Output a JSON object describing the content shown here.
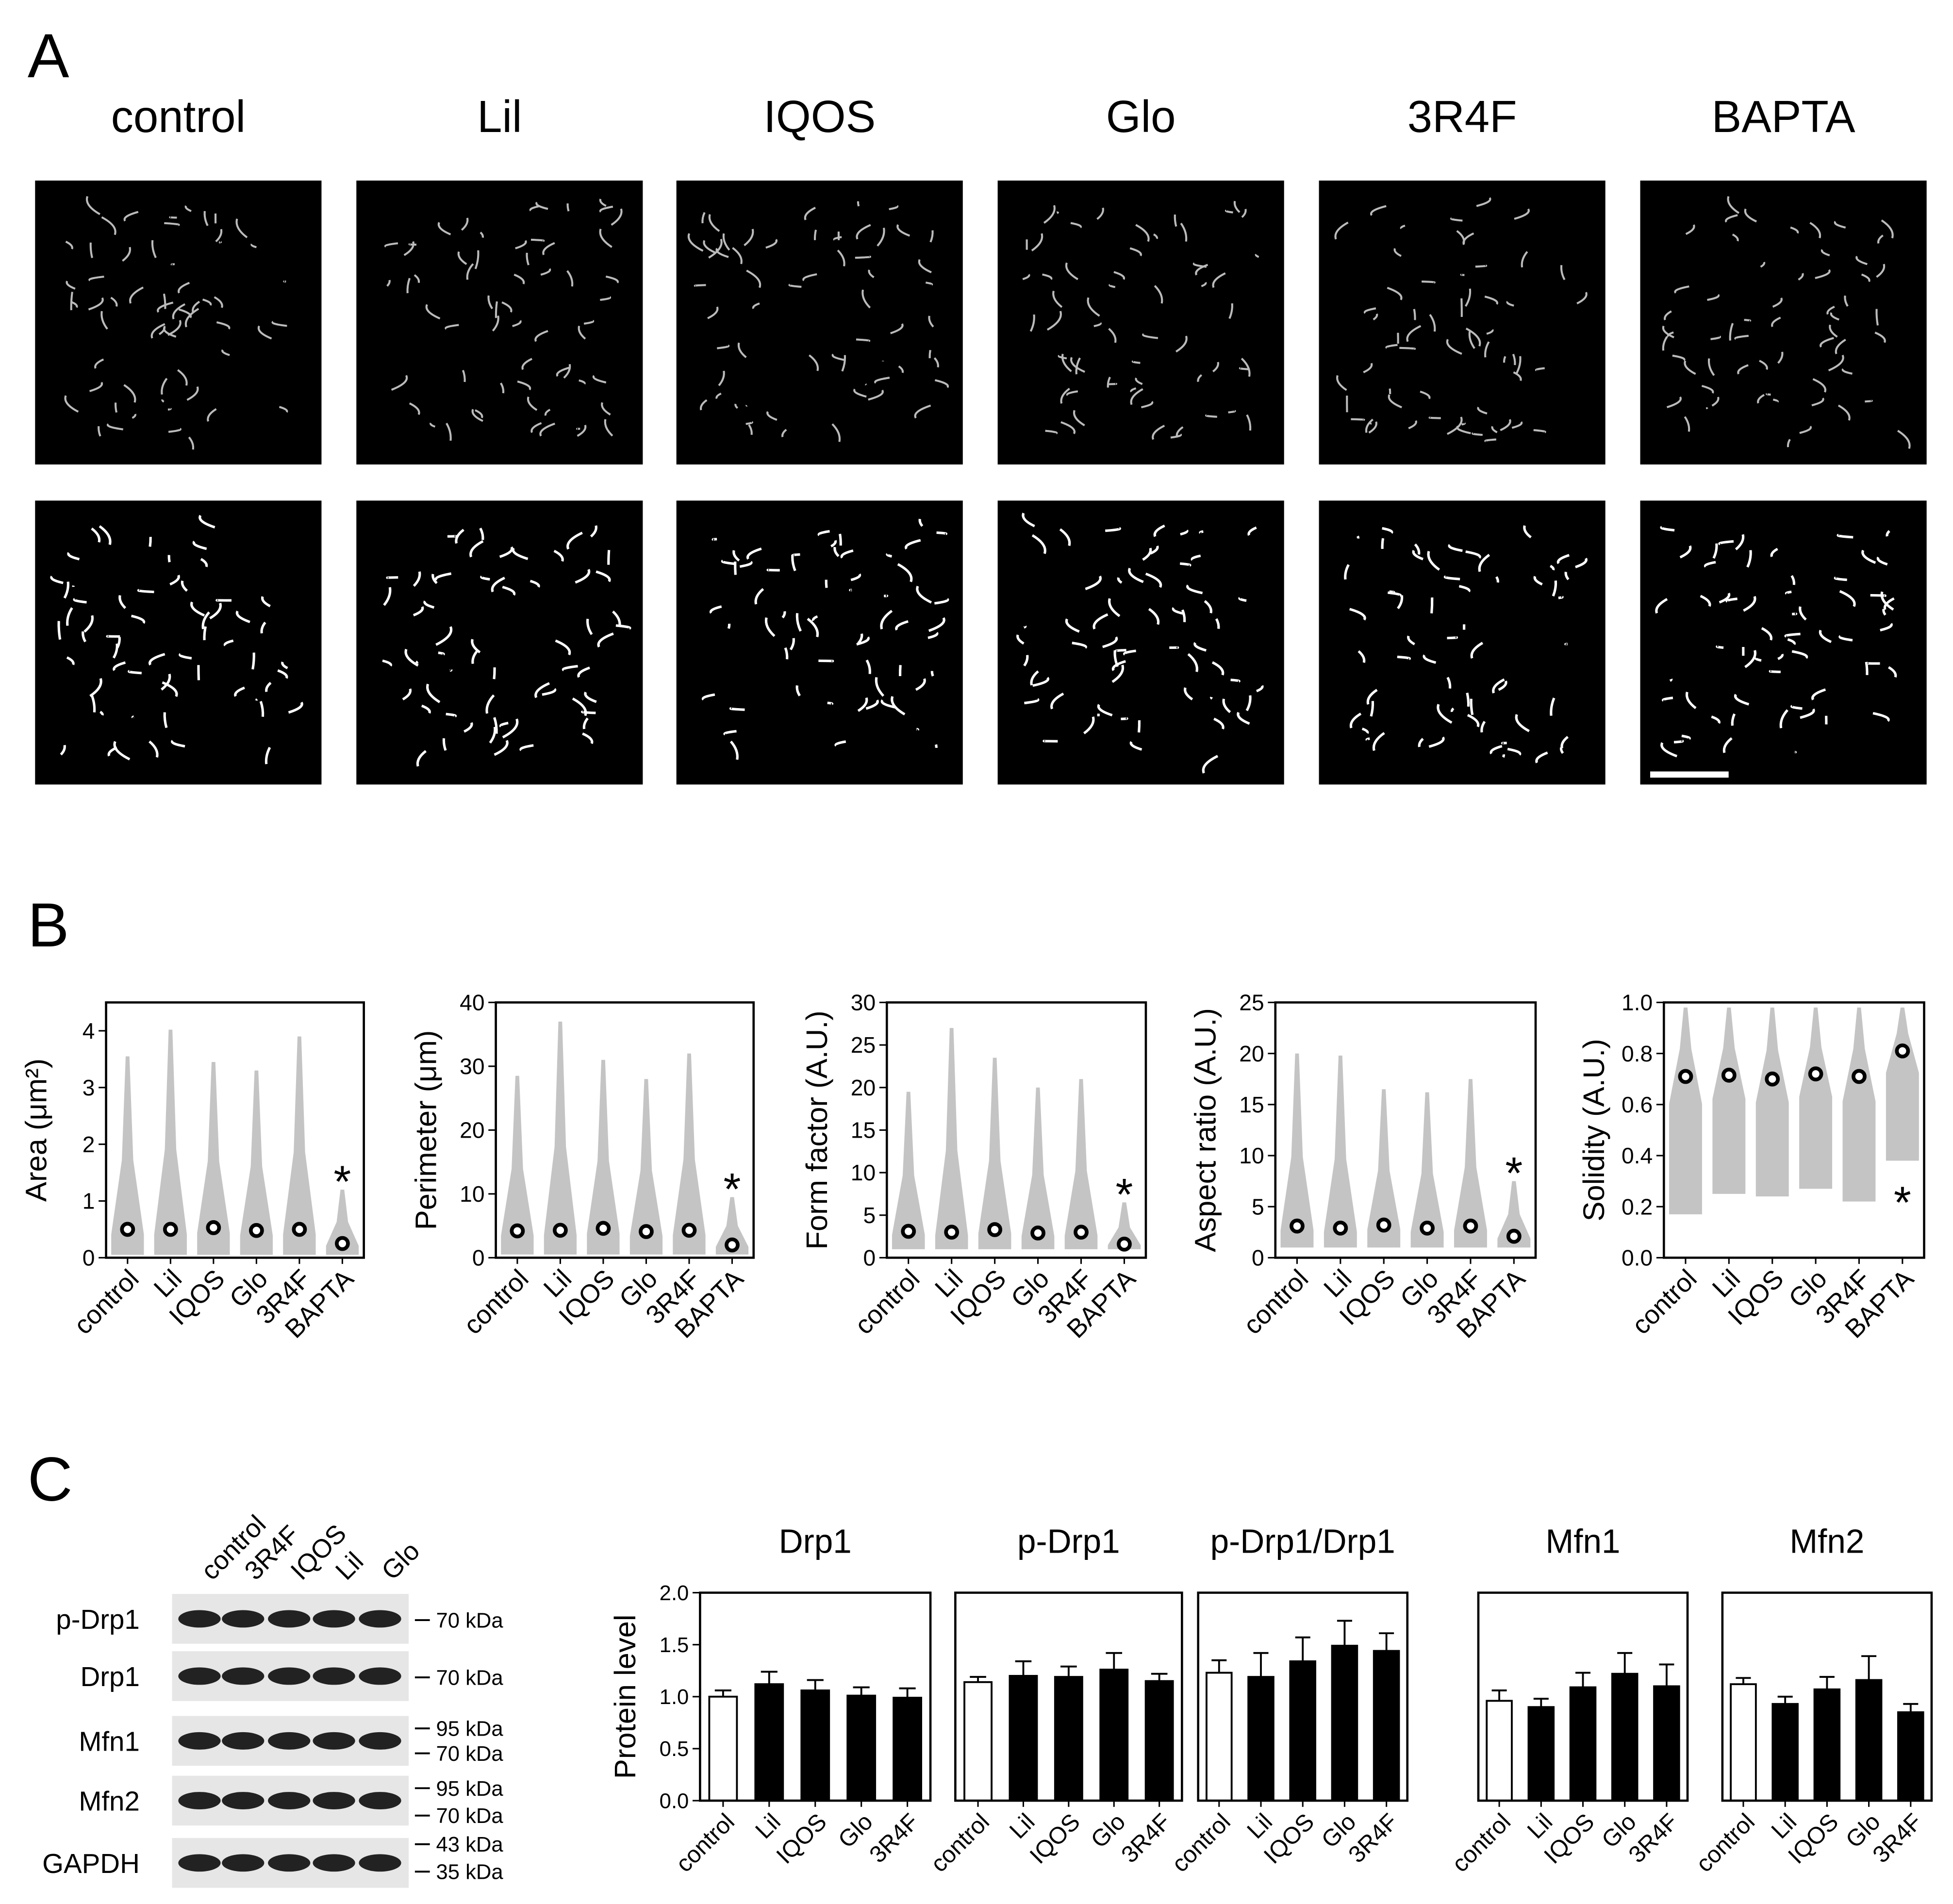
{
  "panel_labels": [
    "A",
    "B",
    "C"
  ],
  "micrograph_columns": [
    "control",
    "Lil",
    "IQOS",
    "Glo",
    "3R4F",
    "BAPTA"
  ],
  "western_blot": {
    "lanes": [
      "control",
      "3R4F",
      "IQOS",
      "Lil",
      "Glo"
    ],
    "rows": [
      {
        "protein": "p-Drp1",
        "markers": [
          "70 kDa"
        ]
      },
      {
        "protein": "Drp1",
        "markers": [
          "70 kDa"
        ]
      },
      {
        "protein": "Mfn1",
        "markers": [
          "95 kDa",
          "70 kDa"
        ]
      },
      {
        "protein": "Mfn2",
        "markers": [
          "95 kDa",
          "70 kDa"
        ]
      },
      {
        "protein": "GAPDH",
        "markers": [
          "43 kDa",
          "35 kDa"
        ]
      }
    ]
  },
  "chart_data": [
    {
      "type": "strip",
      "ylabel": "Area (μm²)",
      "categories": [
        "control",
        "Lil",
        "IQOS",
        "Glo",
        "3R4F",
        "BAPTA"
      ],
      "values": [
        0.5,
        0.5,
        0.53,
        0.48,
        0.5,
        0.25
      ],
      "min": [
        0.05,
        0.05,
        0.05,
        0.05,
        0.05,
        0.05
      ],
      "max": [
        3.55,
        4.02,
        3.45,
        3.3,
        3.9,
        1.2
      ],
      "ylim": [
        0,
        4.5
      ],
      "yticks": [
        0,
        1,
        2,
        3,
        4
      ],
      "annotations": [
        {
          "text": "*",
          "category": "BAPTA"
        }
      ]
    },
    {
      "type": "strip",
      "ylabel": "Perimeter (μm)",
      "categories": [
        "control",
        "Lil",
        "IQOS",
        "Glo",
        "3R4F",
        "BAPTA"
      ],
      "values": [
        4.2,
        4.3,
        4.6,
        4.1,
        4.3,
        2.0
      ],
      "min": [
        0.5,
        0.5,
        0.5,
        0.5,
        0.5,
        0.5
      ],
      "max": [
        28.5,
        37,
        31,
        28,
        32,
        9.5
      ],
      "ylim": [
        0,
        40
      ],
      "yticks": [
        0,
        10,
        20,
        30,
        40
      ],
      "annotations": [
        {
          "text": "*",
          "category": "BAPTA"
        }
      ]
    },
    {
      "type": "strip",
      "ylabel": "Form factor (A.U.)",
      "categories": [
        "control",
        "Lil",
        "IQOS",
        "Glo",
        "3R4F",
        "BAPTA"
      ],
      "values": [
        3.1,
        3.0,
        3.3,
        2.9,
        3.0,
        1.6
      ],
      "min": [
        1,
        1,
        1,
        1,
        1,
        1
      ],
      "max": [
        19.5,
        27,
        23.5,
        20,
        21,
        6.5
      ],
      "ylim": [
        0,
        30
      ],
      "yticks": [
        0,
        5,
        10,
        15,
        20,
        25,
        30
      ],
      "annotations": [
        {
          "text": "*",
          "category": "BAPTA"
        }
      ]
    },
    {
      "type": "strip",
      "ylabel": "Aspect ratio (A.U.)",
      "categories": [
        "control",
        "Lil",
        "IQOS",
        "Glo",
        "3R4F",
        "BAPTA"
      ],
      "values": [
        3.1,
        2.9,
        3.2,
        2.9,
        3.1,
        2.1
      ],
      "min": [
        1,
        1,
        1,
        1,
        1,
        1
      ],
      "max": [
        20,
        19.8,
        16.5,
        16.2,
        17.5,
        7.5
      ],
      "ylim": [
        0,
        25
      ],
      "yticks": [
        0,
        5,
        10,
        15,
        20,
        25
      ],
      "annotations": [
        {
          "text": "*",
          "category": "BAPTA"
        }
      ]
    },
    {
      "type": "strip",
      "ylabel": "Solidity (A.U.)",
      "categories": [
        "control",
        "Lil",
        "IQOS",
        "Glo",
        "3R4F",
        "BAPTA"
      ],
      "values": [
        0.71,
        0.715,
        0.7,
        0.72,
        0.71,
        0.81
      ],
      "min": [
        0.17,
        0.25,
        0.24,
        0.27,
        0.22,
        0.38
      ],
      "max": [
        0.98,
        0.98,
        0.98,
        0.98,
        0.98,
        0.98
      ],
      "ylim": [
        0,
        1
      ],
      "yticks": [
        {
          "value": 0,
          "label": "0.0"
        },
        0.2,
        0.4,
        0.6,
        0.8,
        {
          "value": 1,
          "label": "1.0"
        }
      ],
      "annotations": [
        {
          "text": "*",
          "category": "BAPTA"
        }
      ]
    },
    {
      "type": "bar",
      "title": "Drp1",
      "ylabel": "Protein level",
      "categories": [
        "control",
        "Lil",
        "IQOS",
        "Glo",
        "3R4F"
      ],
      "values": [
        1.0,
        1.12,
        1.06,
        1.01,
        0.99
      ],
      "errors": [
        0.06,
        0.12,
        0.1,
        0.08,
        0.09
      ],
      "colors": [
        "#ffffff",
        "#000000",
        "#000000",
        "#000000",
        "#000000"
      ],
      "ylim": [
        0,
        2
      ],
      "yticks": [
        {
          "value": 0,
          "label": "0.0"
        },
        0.5,
        {
          "value": 1,
          "label": "1.0"
        },
        1.5,
        {
          "value": 2,
          "label": "2.0"
        }
      ]
    },
    {
      "type": "bar",
      "title": "p-Drp1",
      "categories": [
        "control",
        "Lil",
        "IQOS",
        "Glo",
        "3R4F"
      ],
      "values": [
        1.14,
        1.2,
        1.19,
        1.26,
        1.15
      ],
      "errors": [
        0.05,
        0.14,
        0.1,
        0.16,
        0.07
      ],
      "colors": [
        "#ffffff",
        "#000000",
        "#000000",
        "#000000",
        "#000000"
      ],
      "ylim": [
        0,
        2
      ]
    },
    {
      "type": "bar",
      "title": "p-Drp1/Drp1",
      "categories": [
        "control",
        "Lil",
        "IQOS",
        "Glo",
        "3R4F"
      ],
      "values": [
        1.23,
        1.19,
        1.34,
        1.49,
        1.44
      ],
      "errors": [
        0.12,
        0.23,
        0.23,
        0.24,
        0.17
      ],
      "colors": [
        "#ffffff",
        "#000000",
        "#000000",
        "#000000",
        "#000000"
      ],
      "ylim": [
        0,
        2
      ]
    },
    {
      "type": "bar",
      "title": "Mfn1",
      "categories": [
        "control",
        "Lil",
        "IQOS",
        "Glo",
        "3R4F"
      ],
      "values": [
        0.96,
        0.9,
        1.09,
        1.22,
        1.1
      ],
      "errors": [
        0.1,
        0.08,
        0.14,
        0.2,
        0.21
      ],
      "colors": [
        "#ffffff",
        "#000000",
        "#000000",
        "#000000",
        "#000000"
      ],
      "ylim": [
        0,
        2
      ]
    },
    {
      "type": "bar",
      "title": "Mfn2",
      "categories": [
        "control",
        "Lil",
        "IQOS",
        "Glo",
        "3R4F"
      ],
      "values": [
        1.12,
        0.93,
        1.07,
        1.16,
        0.85
      ],
      "errors": [
        0.06,
        0.07,
        0.12,
        0.23,
        0.08
      ],
      "colors": [
        "#ffffff",
        "#000000",
        "#000000",
        "#000000",
        "#000000"
      ],
      "ylim": [
        0,
        2
      ]
    }
  ]
}
